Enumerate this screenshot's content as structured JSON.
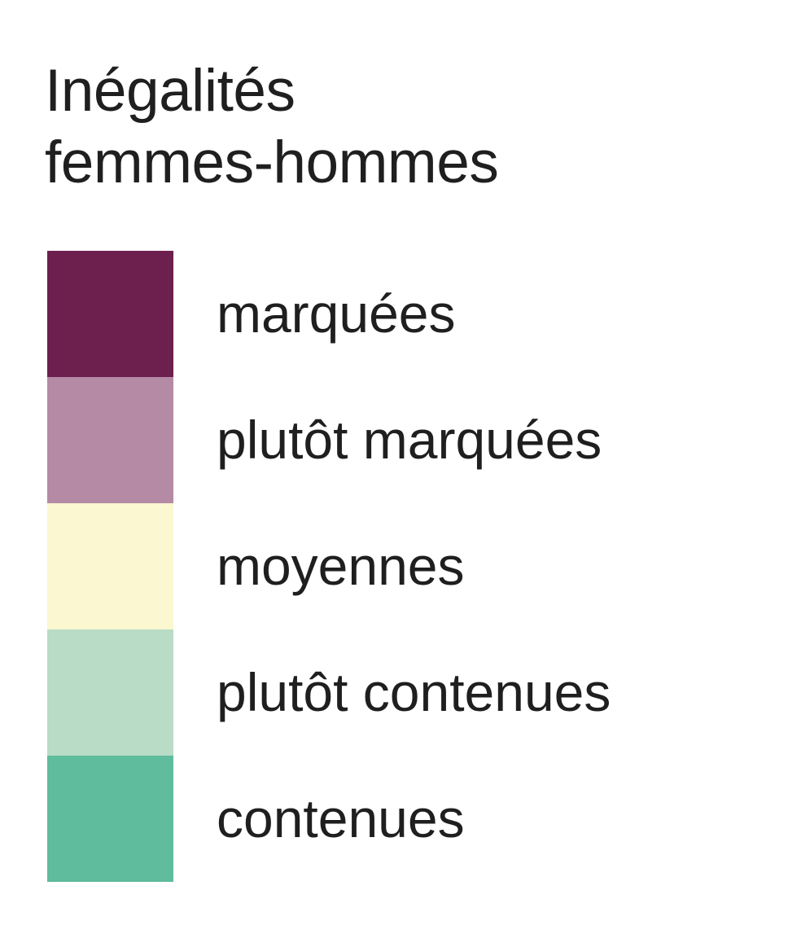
{
  "legend": {
    "title_line1": "Inégalités",
    "title_line2": "femmes-hommes",
    "items": [
      {
        "label": "marquées",
        "color": "#6d1f4e"
      },
      {
        "label": "plutôt marquées",
        "color": "#b58aa5"
      },
      {
        "label": "moyennes",
        "color": "#fbf7d0"
      },
      {
        "label": "plutôt contenues",
        "color": "#b8dcc5"
      },
      {
        "label": "contenues",
        "color": "#5fbc9c"
      }
    ]
  }
}
